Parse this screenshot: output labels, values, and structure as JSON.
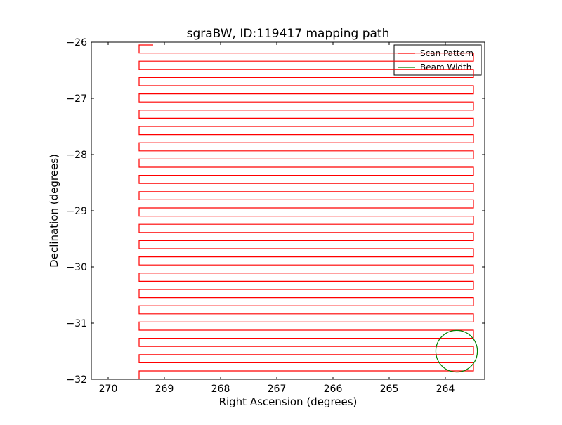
{
  "chart_data": {
    "type": "line",
    "title": "sgraBW, ID:119417 mapping path",
    "xlabel": "Right Ascension (degrees)",
    "ylabel": "Declination (degrees)",
    "xlim": [
      270.3,
      263.3
    ],
    "ylim": [
      -32,
      -26
    ],
    "x_inverted": true,
    "xticks": [
      270,
      269,
      268,
      267,
      266,
      265,
      264
    ],
    "xtick_labels": [
      "270",
      "269",
      "268",
      "267",
      "266",
      "265",
      "264"
    ],
    "yticks": [
      -26,
      -27,
      -28,
      -29,
      -30,
      -31,
      -32
    ],
    "ytick_labels": [
      "−26",
      "−27",
      "−28",
      "−29",
      "−30",
      "−31",
      "−32"
    ],
    "grid": false,
    "legend": {
      "placement": "top-right",
      "entries": [
        "Scan Pattern",
        "Beam Width"
      ]
    },
    "series": [
      {
        "name": "Scan Pattern",
        "color": "#ff0000",
        "kind": "boustrophedon-scan",
        "x_left": 269.45,
        "x_right": 263.5,
        "x_start": 269.2,
        "x_end": 265.3,
        "dec_start": -26.05,
        "dec_end": -31.97,
        "dec_step": -0.145
      },
      {
        "name": "Beam Width",
        "color": "#008000",
        "kind": "circle",
        "center": [
          263.8,
          -31.5
        ],
        "radius": 0.37
      }
    ]
  }
}
